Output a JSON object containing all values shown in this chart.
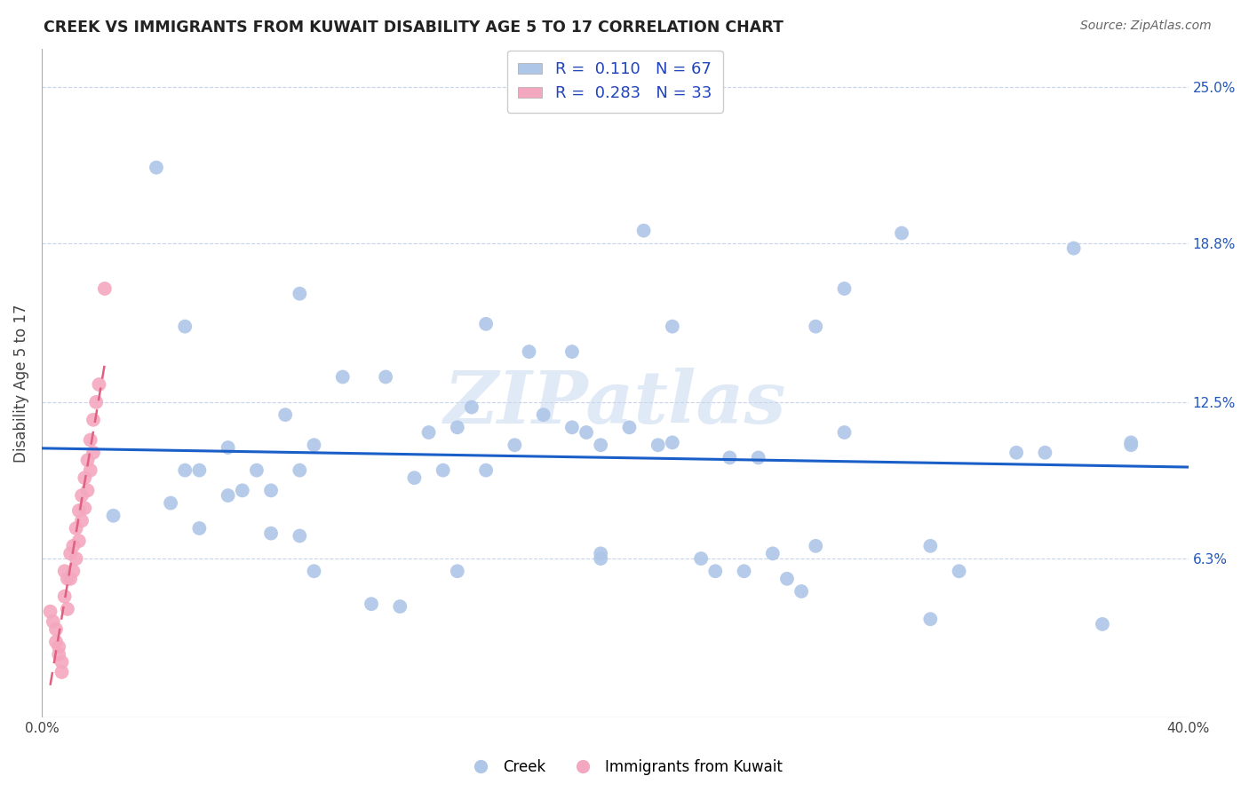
{
  "title": "CREEK VS IMMIGRANTS FROM KUWAIT DISABILITY AGE 5 TO 17 CORRELATION CHART",
  "source": "Source: ZipAtlas.com",
  "ylabel": "Disability Age 5 to 17",
  "xlim": [
    0.0,
    0.4
  ],
  "ylim": [
    0.0,
    0.265
  ],
  "xticks": [
    0.0,
    0.05,
    0.1,
    0.15,
    0.2,
    0.25,
    0.3,
    0.35,
    0.4
  ],
  "xticklabels": [
    "0.0%",
    "",
    "",
    "",
    "",
    "",
    "",
    "",
    "40.0%"
  ],
  "ytick_positions": [
    0.0,
    0.063,
    0.125,
    0.188,
    0.25
  ],
  "ytick_labels": [
    "",
    "6.3%",
    "12.5%",
    "18.8%",
    "25.0%"
  ],
  "creek_color": "#aec6e8",
  "kuwait_color": "#f4a8c0",
  "trend_blue_color": "#1a5fc8",
  "trend_pink_color": "#e06080",
  "background_color": "#ffffff",
  "grid_color": "#c8d4e8",
  "legend_R1": "0.110",
  "legend_N1": "67",
  "legend_R2": "0.283",
  "legend_N2": "33",
  "legend_label1": "Creek",
  "legend_label2": "Immigrants from Kuwait",
  "watermark": "ZIPatlas",
  "creek_x": [
    0.04,
    0.09,
    0.05,
    0.085,
    0.175,
    0.105,
    0.12,
    0.145,
    0.21,
    0.3,
    0.36,
    0.27,
    0.35,
    0.22,
    0.17,
    0.185,
    0.135,
    0.065,
    0.095,
    0.055,
    0.075,
    0.07,
    0.08,
    0.045,
    0.065,
    0.055,
    0.08,
    0.09,
    0.13,
    0.15,
    0.19,
    0.165,
    0.155,
    0.14,
    0.25,
    0.235,
    0.195,
    0.22,
    0.28,
    0.32,
    0.38,
    0.245,
    0.26,
    0.31,
    0.195,
    0.215,
    0.24,
    0.265,
    0.115,
    0.125,
    0.28,
    0.31,
    0.205,
    0.185,
    0.155,
    0.195,
    0.255,
    0.23,
    0.27,
    0.09,
    0.05,
    0.145,
    0.095,
    0.34,
    0.38,
    0.37,
    0.025
  ],
  "creek_y": [
    0.218,
    0.168,
    0.155,
    0.12,
    0.12,
    0.135,
    0.135,
    0.115,
    0.193,
    0.192,
    0.186,
    0.155,
    0.105,
    0.155,
    0.145,
    0.115,
    0.113,
    0.107,
    0.108,
    0.098,
    0.098,
    0.09,
    0.09,
    0.085,
    0.088,
    0.075,
    0.073,
    0.072,
    0.095,
    0.123,
    0.113,
    0.108,
    0.098,
    0.098,
    0.103,
    0.058,
    0.063,
    0.109,
    0.113,
    0.058,
    0.108,
    0.058,
    0.055,
    0.068,
    0.108,
    0.108,
    0.103,
    0.05,
    0.045,
    0.044,
    0.17,
    0.039,
    0.115,
    0.145,
    0.156,
    0.065,
    0.065,
    0.063,
    0.068,
    0.098,
    0.098,
    0.058,
    0.058,
    0.105,
    0.109,
    0.037,
    0.08
  ],
  "kuwait_x": [
    0.003,
    0.004,
    0.005,
    0.005,
    0.006,
    0.006,
    0.007,
    0.007,
    0.008,
    0.008,
    0.009,
    0.009,
    0.01,
    0.01,
    0.011,
    0.011,
    0.012,
    0.012,
    0.013,
    0.013,
    0.014,
    0.014,
    0.015,
    0.015,
    0.016,
    0.016,
    0.017,
    0.017,
    0.018,
    0.018,
    0.019,
    0.02,
    0.022
  ],
  "kuwait_y": [
    0.042,
    0.038,
    0.035,
    0.03,
    0.028,
    0.025,
    0.022,
    0.018,
    0.058,
    0.048,
    0.055,
    0.043,
    0.065,
    0.055,
    0.068,
    0.058,
    0.075,
    0.063,
    0.082,
    0.07,
    0.088,
    0.078,
    0.095,
    0.083,
    0.102,
    0.09,
    0.11,
    0.098,
    0.118,
    0.105,
    0.125,
    0.132,
    0.17
  ]
}
